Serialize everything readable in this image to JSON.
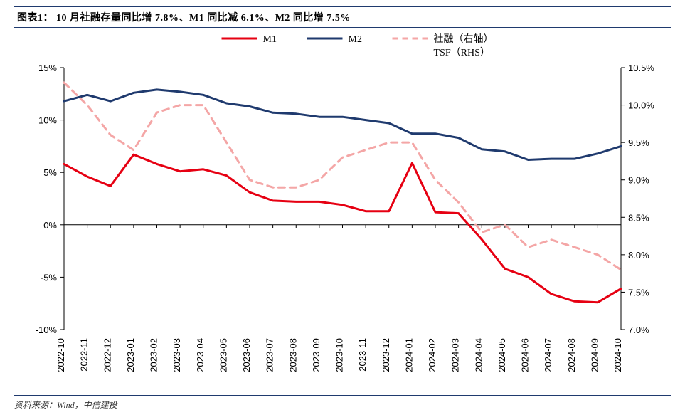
{
  "title": "图表1： 10 月社融存量同比增 7.8%、M1 同比减 6.1%、M2 同比增 7.5%",
  "source": "资料来源：Wind，中信建投",
  "chart": {
    "type": "line",
    "background_color": "#ffffff",
    "categories": [
      "2022-10",
      "2022-11",
      "2022-12",
      "2023-01",
      "2023-02",
      "2023-03",
      "2023-04",
      "2023-05",
      "2023-06",
      "2023-07",
      "2023-08",
      "2023-09",
      "2023-10",
      "2023-11",
      "2023-12",
      "2024-01",
      "2024-02",
      "2024-03",
      "2024-04",
      "2024-05",
      "2024-06",
      "2024-07",
      "2024-08",
      "2024-09",
      "2024-10"
    ],
    "left_axis": {
      "min": -10,
      "max": 15,
      "step": 5,
      "format_suffix": "%",
      "ticks": [
        -10,
        -5,
        0,
        5,
        10,
        15
      ]
    },
    "right_axis": {
      "min": 7.0,
      "max": 10.5,
      "step": 0.5,
      "format_suffix": "%",
      "ticks": [
        7.0,
        7.5,
        8.0,
        8.5,
        9.0,
        9.5,
        10.0,
        10.5
      ]
    },
    "series": [
      {
        "name": "M1",
        "legend_label": "M1",
        "axis": "left",
        "color": "#e60012",
        "line_width": 3,
        "dash": "solid",
        "values": [
          5.8,
          4.6,
          3.7,
          6.7,
          5.8,
          5.1,
          5.3,
          4.7,
          3.1,
          2.3,
          2.2,
          2.2,
          1.9,
          1.3,
          1.3,
          5.9,
          1.2,
          1.1,
          -1.4,
          -4.2,
          -5.0,
          -6.6,
          -7.3,
          -7.4,
          -6.1
        ]
      },
      {
        "name": "M2",
        "legend_label": "M2",
        "axis": "left",
        "color": "#1f3a6e",
        "line_width": 3,
        "dash": "solid",
        "values": [
          11.8,
          12.4,
          11.8,
          12.6,
          12.9,
          12.7,
          12.4,
          11.6,
          11.3,
          10.7,
          10.6,
          10.3,
          10.3,
          10.0,
          9.7,
          8.7,
          8.7,
          8.3,
          7.2,
          7.0,
          6.2,
          6.3,
          6.3,
          6.8,
          7.5
        ]
      },
      {
        "name": "TSF",
        "legend_label_1": "社融（右轴）",
        "legend_label_2": "TSF（RHS）",
        "axis": "right",
        "color": "#f4a6a6",
        "line_width": 3,
        "dash": "dashed",
        "values": [
          10.3,
          10.0,
          9.6,
          9.4,
          9.9,
          10.0,
          10.0,
          9.5,
          9.0,
          8.9,
          8.9,
          9.0,
          9.3,
          9.4,
          9.5,
          9.5,
          9.0,
          8.7,
          8.3,
          8.4,
          8.1,
          8.2,
          8.1,
          8.0,
          7.8
        ]
      }
    ],
    "legend": {
      "items_order": [
        "M1",
        "M2",
        "TSF"
      ],
      "position": "top"
    },
    "axis_line_color": "#000000",
    "axis_line_width": 1,
    "tick_length": 5,
    "label_fontsize": 13,
    "title_fontsize": 14,
    "xlabel_rotation": -90
  }
}
